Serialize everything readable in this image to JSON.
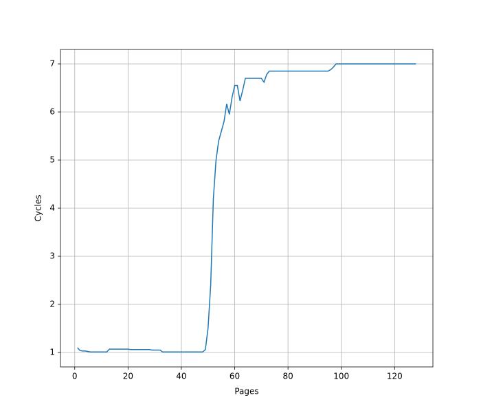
{
  "chart_data": {
    "type": "line",
    "xlabel": "Pages",
    "ylabel": "Cycles",
    "x": [
      1,
      2,
      3,
      4,
      5,
      6,
      12,
      13,
      20,
      21,
      28,
      29,
      32,
      33,
      48,
      49,
      50,
      51,
      52,
      53,
      54,
      55,
      56,
      57,
      58,
      59,
      60,
      61,
      62,
      63,
      64,
      70,
      71,
      72,
      73,
      95,
      96,
      97,
      98,
      128
    ],
    "series": [
      {
        "color": "#1f77b4",
        "values": [
          1.1,
          1.04,
          1.03,
          1.03,
          1.02,
          1.01,
          1.01,
          1.07,
          1.07,
          1.06,
          1.06,
          1.05,
          1.05,
          1.01,
          1.01,
          1.06,
          1.5,
          2.4,
          4.2,
          5.0,
          5.4,
          5.6,
          5.8,
          6.17,
          5.95,
          6.3,
          6.55,
          6.55,
          6.23,
          6.45,
          6.7,
          6.7,
          6.62,
          6.78,
          6.85,
          6.85,
          6.88,
          6.93,
          7.0,
          7.0
        ]
      }
    ],
    "xlim": [
      -5.35,
      134.35
    ],
    "ylim": [
      0.7,
      7.3
    ],
    "xticks": [
      0,
      20,
      40,
      60,
      80,
      100,
      120
    ],
    "yticks": [
      1,
      2,
      3,
      4,
      5,
      6,
      7
    ],
    "grid": true
  }
}
